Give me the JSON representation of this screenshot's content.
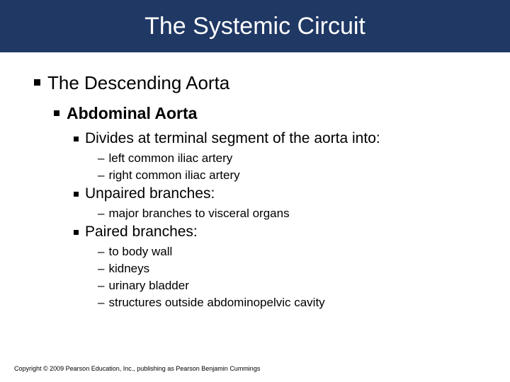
{
  "colors": {
    "title_bg": "#1f3864",
    "title_fg": "#ffffff",
    "text": "#000000",
    "bg": "#ffffff"
  },
  "title": "The Systemic Circuit",
  "h1": "The Descending Aorta",
  "h2": "Abdominal Aorta",
  "sec1_head": "Divides at terminal segment of the aorta into:",
  "sec1_items": {
    "a": "left common iliac artery",
    "b": "right common iliac artery"
  },
  "sec2_head": "Unpaired branches:",
  "sec2_items": {
    "a": "major branches to visceral organs"
  },
  "sec3_head": "Paired branches:",
  "sec3_items": {
    "a": "to body wall",
    "b": "kidneys",
    "c": "urinary bladder",
    "d": "structures outside abdominopelvic cavity"
  },
  "footer": "Copyright © 2009 Pearson Education, Inc., publishing as Pearson Benjamin Cummings"
}
